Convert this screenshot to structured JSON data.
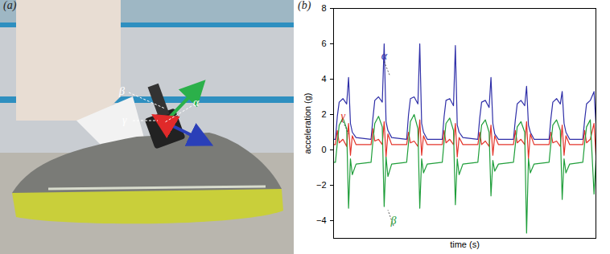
{
  "chart_data": {
    "type": "line",
    "title": "(b)",
    "x_label": "time (s)",
    "y_label": "acceleration (g)",
    "x": [
      0,
      0.5,
      1,
      1.5,
      2.5,
      3.5,
      4,
      4.5,
      5,
      6,
      10,
      10.5,
      11,
      12,
      13,
      13.5,
      14,
      14.5,
      15.5,
      19.5,
      20,
      20.5,
      21.5,
      22.5,
      23,
      23.5,
      24,
      25,
      29,
      29.5,
      30,
      31,
      32,
      32.5,
      33,
      33.5,
      34.5,
      38.5,
      39,
      39.5,
      40.5,
      41.5,
      42,
      42.5,
      43,
      44,
      48,
      48.5,
      49,
      50,
      51,
      51.5,
      52,
      52.5,
      53.5,
      57.5,
      58,
      58.5,
      59.5,
      60.5,
      61,
      61.5,
      62,
      63,
      66.5,
      67,
      67.5,
      68.5,
      69.5,
      70
    ],
    "series": [
      {
        "name": "α",
        "color": "#2f2fa8",
        "values": [
          0.6,
          0.6,
          1.9,
          2.7,
          2.9,
          2.6,
          4.1,
          1.5,
          1.0,
          0.7,
          0.6,
          1.8,
          2.8,
          3.0,
          2.7,
          6.0,
          1.6,
          1.1,
          0.7,
          0.6,
          2.0,
          2.9,
          3.0,
          2.6,
          6.0,
          1.5,
          1.0,
          0.6,
          0.6,
          1.9,
          2.8,
          2.9,
          2.5,
          5.9,
          1.4,
          1.0,
          0.7,
          0.6,
          1.8,
          2.7,
          2.8,
          2.4,
          4.1,
          1.5,
          0.9,
          0.6,
          0.6,
          1.7,
          2.6,
          2.8,
          2.5,
          3.6,
          1.4,
          1.0,
          0.6,
          0.6,
          1.8,
          2.7,
          2.9,
          2.6,
          3.3,
          1.5,
          1.0,
          0.6,
          0.6,
          1.7,
          2.6,
          2.8,
          3.3,
          1.5
        ]
      },
      {
        "name": "γ",
        "color": "#e3342a",
        "values": [
          0.3,
          0.3,
          1.1,
          0.4,
          0.6,
          0.2,
          1.5,
          -0.3,
          0.8,
          0.3,
          0.3,
          1.2,
          0.5,
          0.6,
          0.3,
          1.6,
          -0.4,
          0.9,
          0.3,
          0.3,
          1.0,
          0.4,
          0.5,
          0.2,
          1.7,
          -0.3,
          0.8,
          0.3,
          0.3,
          1.1,
          0.4,
          0.6,
          0.3,
          1.5,
          -0.4,
          0.7,
          0.3,
          0.3,
          1.0,
          0.3,
          0.5,
          0.2,
          1.4,
          -0.3,
          0.8,
          0.3,
          0.3,
          1.1,
          0.4,
          0.6,
          0.3,
          1.6,
          -0.5,
          0.9,
          0.3,
          0.3,
          1.0,
          0.4,
          0.5,
          0.2,
          1.4,
          -0.3,
          0.8,
          0.3,
          0.3,
          1.1,
          0.4,
          0.6,
          1.5,
          -0.3
        ]
      },
      {
        "name": "β",
        "color": "#1f9e3a",
        "values": [
          -0.7,
          -0.7,
          0.4,
          1.4,
          1.8,
          1.2,
          -3.3,
          -0.5,
          -1.4,
          -0.8,
          -0.7,
          0.5,
          1.5,
          1.9,
          1.3,
          -3.2,
          -0.4,
          -1.5,
          -0.8,
          -0.7,
          0.4,
          1.6,
          2.0,
          1.2,
          -3.3,
          -0.5,
          -1.3,
          -0.8,
          -0.7,
          0.5,
          1.5,
          1.8,
          1.1,
          -3.1,
          -0.5,
          -1.4,
          -0.8,
          -0.7,
          0.4,
          1.4,
          1.7,
          1.0,
          -2.6,
          -0.6,
          -1.2,
          -0.8,
          -0.7,
          0.3,
          1.3,
          1.6,
          1.0,
          -4.7,
          -0.5,
          -1.3,
          -0.8,
          -0.7,
          0.4,
          1.4,
          1.7,
          1.1,
          -2.8,
          -0.5,
          -1.3,
          -0.8,
          -0.7,
          0.4,
          1.3,
          1.7,
          -2.5,
          -0.6
        ]
      }
    ],
    "xlim": [
      0,
      70
    ],
    "xticks": [],
    "ylim": [
      -5,
      8
    ],
    "yticks": [
      -4,
      -2,
      0,
      2,
      4,
      6,
      8
    ],
    "tick_labels": "y"
  },
  "photo_panel": {
    "panel_label": "(a)",
    "arrow_labels": [
      "β",
      "α",
      "γ"
    ]
  }
}
